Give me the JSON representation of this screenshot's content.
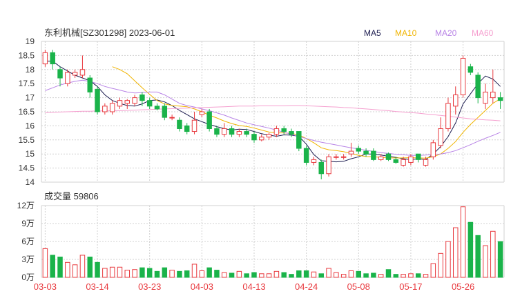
{
  "header": {
    "title": "东利机械[SZ301298] 2023-06-01",
    "legend": [
      {
        "label": "MA5",
        "color": "#1a1a4e"
      },
      {
        "label": "MA10",
        "color": "#f0b400"
      },
      {
        "label": "MA20",
        "color": "#b883e6"
      },
      {
        "label": "MA60",
        "color": "#f59fcf"
      }
    ]
  },
  "volume_label": "成交量 59806",
  "colors": {
    "up": "#e8383d",
    "down": "#1ab34a",
    "grid": "#d0d0d0",
    "axis": "#333333"
  },
  "chart_data": [
    {
      "type": "candlestick",
      "title": "东利机械[SZ301298] 2023-06-01",
      "ylim": [
        14,
        19
      ],
      "y_ticks": [
        "19",
        "18.5",
        "18",
        "17.5",
        "17",
        "16.5",
        "16",
        "15.5",
        "15",
        "14.5",
        "14"
      ],
      "x_tick_labels": [
        "03-03",
        "03-14",
        "03-23",
        "04-03",
        "04-13",
        "04-24",
        "05-08",
        "05-17",
        "05-26"
      ],
      "x_tick_index": [
        0,
        7,
        14,
        21,
        28,
        35,
        42,
        49,
        56
      ],
      "candles": [
        [
          18.2,
          18.6,
          18.7,
          18.1
        ],
        [
          18.6,
          18.2,
          18.7,
          18.0
        ],
        [
          18.0,
          17.7,
          18.1,
          17.4
        ],
        [
          17.5,
          17.9,
          18.0,
          17.4
        ],
        [
          17.8,
          17.9,
          18.0,
          17.7
        ],
        [
          17.8,
          18.0,
          18.5,
          17.7
        ],
        [
          17.7,
          17.2,
          17.8,
          17.0
        ],
        [
          17.3,
          16.5,
          17.4,
          16.4
        ],
        [
          16.5,
          16.7,
          16.8,
          16.4
        ],
        [
          16.5,
          16.8,
          16.9,
          16.4
        ],
        [
          16.7,
          16.9,
          17.0,
          16.6
        ],
        [
          16.8,
          16.9,
          16.95,
          16.6
        ],
        [
          16.8,
          17.0,
          17.1,
          16.7
        ],
        [
          17.1,
          16.9,
          17.2,
          16.7
        ],
        [
          16.9,
          16.7,
          17.0,
          16.6
        ],
        [
          16.7,
          16.6,
          16.8,
          16.55
        ],
        [
          16.7,
          16.3,
          16.8,
          16.2
        ],
        [
          16.3,
          16.3,
          16.4,
          16.2
        ],
        [
          16.2,
          15.9,
          16.3,
          15.8
        ],
        [
          16.0,
          15.8,
          16.1,
          15.7
        ],
        [
          15.8,
          16.2,
          16.5,
          15.7
        ],
        [
          16.4,
          16.5,
          16.6,
          16.3
        ],
        [
          16.5,
          15.9,
          16.6,
          15.8
        ],
        [
          15.9,
          15.7,
          16.0,
          15.6
        ],
        [
          15.7,
          15.9,
          16.1,
          15.6
        ],
        [
          15.9,
          15.7,
          16.0,
          15.6
        ],
        [
          15.7,
          15.8,
          15.9,
          15.6
        ],
        [
          15.8,
          15.7,
          15.9,
          15.6
        ],
        [
          15.7,
          15.5,
          15.8,
          15.4
        ],
        [
          15.5,
          15.6,
          15.7,
          15.45
        ],
        [
          15.6,
          15.7,
          15.75,
          15.5
        ],
        [
          15.7,
          15.9,
          16.0,
          15.6
        ],
        [
          15.9,
          15.8,
          16.0,
          15.7
        ],
        [
          15.8,
          15.7,
          15.9,
          15.6
        ],
        [
          15.8,
          15.2,
          15.8,
          15.1
        ],
        [
          15.2,
          14.7,
          15.3,
          14.6
        ],
        [
          14.7,
          14.8,
          14.9,
          14.6
        ],
        [
          14.7,
          14.3,
          14.8,
          14.1
        ],
        [
          14.3,
          14.9,
          15.0,
          14.2
        ],
        [
          14.9,
          14.9,
          15.0,
          14.8
        ],
        [
          14.9,
          14.9,
          15.0,
          14.8
        ],
        [
          15.0,
          15.1,
          15.4,
          14.9
        ],
        [
          15.2,
          15.1,
          15.3,
          15.0
        ],
        [
          15.1,
          15.0,
          15.2,
          14.9
        ],
        [
          15.1,
          14.8,
          15.2,
          14.75
        ],
        [
          14.8,
          14.9,
          15.0,
          14.75
        ],
        [
          15.0,
          14.8,
          15.05,
          14.75
        ],
        [
          14.8,
          14.7,
          14.9,
          14.65
        ],
        [
          14.6,
          14.8,
          14.9,
          14.55
        ],
        [
          14.7,
          14.9,
          15.0,
          14.6
        ],
        [
          15.0,
          14.8,
          15.0,
          14.7
        ],
        [
          14.6,
          14.8,
          14.9,
          14.55
        ],
        [
          14.9,
          15.4,
          15.5,
          14.8
        ],
        [
          15.3,
          15.9,
          16.3,
          15.2
        ],
        [
          15.9,
          16.8,
          17.0,
          15.8
        ],
        [
          16.7,
          17.1,
          17.4,
          16.4
        ],
        [
          17.1,
          18.4,
          18.5,
          17.0
        ],
        [
          18.1,
          17.9,
          18.2,
          17.8
        ],
        [
          17.8,
          17.0,
          17.9,
          16.8
        ],
        [
          16.8,
          17.2,
          17.5,
          16.6
        ],
        [
          17.0,
          17.2,
          18.0,
          16.8
        ],
        [
          17.0,
          16.9,
          17.2,
          16.6
        ]
      ],
      "series": [
        {
          "name": "MA5",
          "color": "#1a1a4e",
          "values": [
            18.3,
            18.3,
            18.1,
            17.95,
            17.8,
            17.7,
            17.6,
            17.4,
            17.1,
            16.9,
            16.8,
            16.72,
            16.7,
            16.78,
            16.9,
            16.92,
            16.85,
            16.72,
            16.55,
            16.4,
            16.25,
            16.15,
            16.05,
            15.97,
            15.9,
            15.85,
            15.88,
            15.87,
            15.8,
            15.72,
            15.67,
            15.63,
            15.68,
            15.67,
            15.63,
            15.35,
            14.98,
            14.76,
            14.74,
            14.72,
            14.74,
            14.83,
            14.9,
            15.0,
            15.0,
            14.96,
            14.92,
            14.88,
            14.83,
            14.8,
            14.83,
            14.8,
            15.0,
            15.26,
            15.62,
            16.1,
            16.78,
            17.14,
            17.5,
            17.77,
            17.66,
            17.4
          ]
        },
        {
          "name": "MA10",
          "color": "#f0b400",
          "values": [
            null,
            null,
            null,
            null,
            null,
            null,
            null,
            null,
            null,
            18.1,
            18.0,
            17.85,
            17.6,
            17.35,
            17.12,
            16.9,
            16.78,
            16.72,
            16.7,
            16.68,
            16.6,
            16.5,
            16.38,
            16.28,
            16.17,
            16.08,
            16.01,
            15.98,
            15.92,
            15.85,
            15.78,
            15.75,
            15.75,
            15.73,
            15.68,
            15.55,
            15.4,
            15.22,
            15.15,
            15.12,
            15.08,
            15.02,
            14.95,
            14.91,
            14.9,
            14.88,
            14.86,
            14.86,
            14.86,
            14.87,
            14.86,
            14.85,
            14.9,
            15.0,
            15.2,
            15.44,
            15.77,
            16.05,
            16.3,
            16.55,
            16.8,
            16.96
          ]
        },
        {
          "name": "MA20",
          "color": "#b883e6",
          "values": [
            17.25,
            17.35,
            17.45,
            17.52,
            17.58,
            17.62,
            17.58,
            17.5,
            17.4,
            17.33,
            17.27,
            17.2,
            17.17,
            17.18,
            17.2,
            17.2,
            17.1,
            16.95,
            16.8,
            16.72,
            16.67,
            16.6,
            16.54,
            16.46,
            16.38,
            16.28,
            16.19,
            16.1,
            16.04,
            15.98,
            15.92,
            15.85,
            15.77,
            15.7,
            15.62,
            15.55,
            15.48,
            15.42,
            15.37,
            15.32,
            15.27,
            15.22,
            15.18,
            15.13,
            15.09,
            15.05,
            15.02,
            14.99,
            14.97,
            14.95,
            14.95,
            14.96,
            14.98,
            15.0,
            15.05,
            15.12,
            15.22,
            15.33,
            15.45,
            15.56,
            15.66,
            15.77
          ]
        },
        {
          "name": "MA60",
          "color": "#f59fcf",
          "values": [
            16.47,
            16.48,
            16.49,
            16.5,
            16.51,
            16.52,
            16.52,
            16.53,
            16.53,
            16.54,
            16.54,
            16.55,
            16.56,
            16.57,
            16.58,
            16.59,
            16.6,
            16.61,
            16.62,
            16.63,
            16.64,
            16.65,
            16.66,
            16.67,
            16.68,
            16.69,
            16.7,
            16.7,
            16.7,
            16.71,
            16.71,
            16.71,
            16.71,
            16.72,
            16.72,
            16.71,
            16.7,
            16.69,
            16.68,
            16.67,
            16.65,
            16.64,
            16.62,
            16.6,
            16.58,
            16.56,
            16.54,
            16.51,
            16.49,
            16.47,
            16.45,
            16.42,
            16.4,
            16.37,
            16.34,
            16.31,
            16.28,
            16.25,
            16.23,
            16.21,
            16.2,
            16.18
          ]
        }
      ]
    },
    {
      "type": "bar",
      "title": "成交量 59806",
      "ylim": [
        0,
        120000
      ],
      "y_ticks": [
        {
          "value": 120000,
          "label": "12万"
        },
        {
          "value": 90000,
          "label": "9万"
        },
        {
          "value": 60000,
          "label": "6万"
        },
        {
          "value": 30000,
          "label": "3万"
        },
        {
          "value": 0,
          "label": "0万"
        }
      ],
      "values": [
        48000,
        37000,
        34000,
        25000,
        21000,
        37000,
        34000,
        25000,
        15000,
        17000,
        17000,
        12000,
        13000,
        16000,
        15000,
        10000,
        16000,
        12000,
        10000,
        11000,
        22000,
        11000,
        16000,
        12000,
        8000,
        7000,
        10000,
        6000,
        8000,
        6000,
        6000,
        10000,
        8000,
        5000,
        11000,
        11000,
        9000,
        6000,
        15000,
        8000,
        5000,
        11000,
        10000,
        6000,
        7000,
        5000,
        13000,
        5000,
        5000,
        6000,
        6000,
        5000,
        23000,
        40000,
        60000,
        83000,
        118000,
        92000,
        70000,
        53000,
        77000,
        59806
      ]
    }
  ]
}
